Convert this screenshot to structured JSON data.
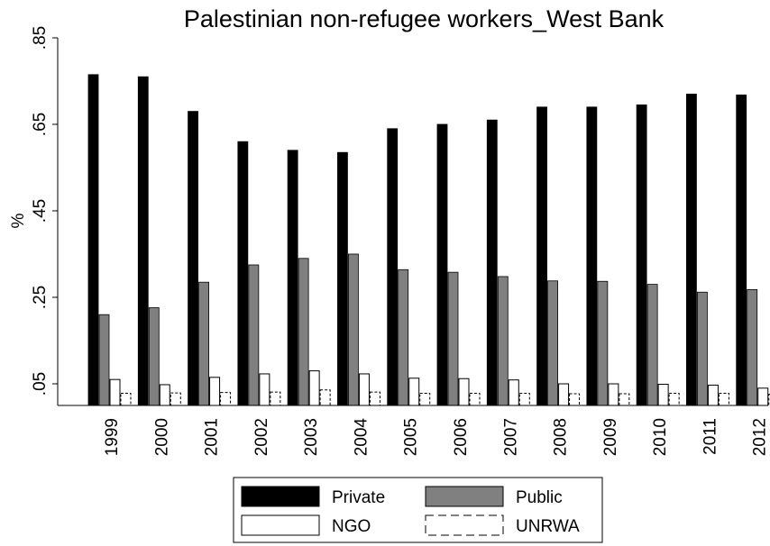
{
  "chart_data": {
    "type": "bar",
    "title": "Palestinian non-refugee workers_West Bank",
    "xlabel": "",
    "ylabel": "%",
    "ylim": [
      0.0,
      0.85
    ],
    "yticks": [
      ".05",
      ".25",
      ".45",
      ".65",
      ".85"
    ],
    "ytick_values": [
      0.05,
      0.25,
      0.45,
      0.65,
      0.85
    ],
    "grid": false,
    "legend_position": "bottom",
    "categories": [
      "1999",
      "2000",
      "2001",
      "2002",
      "2003",
      "2004",
      "2005",
      "2006",
      "2007",
      "2008",
      "2009",
      "2010",
      "2011",
      "2012"
    ],
    "series": [
      {
        "name": "Private",
        "color": "#000000",
        "style": "solid-fill",
        "values": [
          0.765,
          0.76,
          0.68,
          0.61,
          0.59,
          0.585,
          0.64,
          0.65,
          0.66,
          0.69,
          0.69,
          0.695,
          0.72,
          0.718
        ]
      },
      {
        "name": "Public",
        "color": "#808080",
        "style": "solid-fill",
        "values": [
          0.21,
          0.226,
          0.285,
          0.325,
          0.34,
          0.35,
          0.314,
          0.308,
          0.298,
          0.288,
          0.287,
          0.28,
          0.262,
          0.268
        ]
      },
      {
        "name": "NGO",
        "color": "#ffffff",
        "style": "outline",
        "values": [
          0.06,
          0.048,
          0.065,
          0.073,
          0.08,
          0.073,
          0.063,
          0.062,
          0.059,
          0.05,
          0.05,
          0.049,
          0.047,
          0.04
        ]
      },
      {
        "name": "UNRWA",
        "color": "#ffffff",
        "style": "dashed-outline",
        "values": [
          0.028,
          0.029,
          0.03,
          0.031,
          0.036,
          0.031,
          0.028,
          0.028,
          0.028,
          0.027,
          0.027,
          0.028,
          0.028,
          0.026
        ]
      }
    ]
  }
}
